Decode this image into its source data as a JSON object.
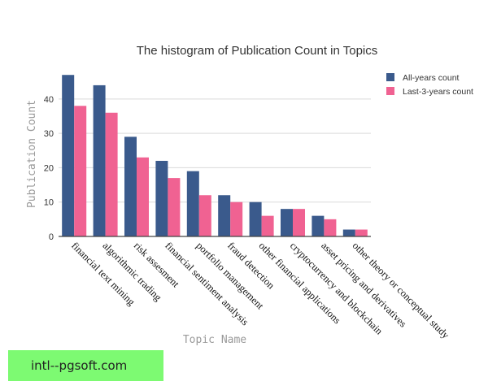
{
  "chart_data": {
    "type": "bar",
    "title": "The histogram of  Publication Count in Topics",
    "xlabel": "Topic Name",
    "ylabel": "Publication Count",
    "ylim": [
      0,
      48
    ],
    "yticks": [
      0,
      10,
      20,
      30,
      40
    ],
    "grid": true,
    "legend_position": "top-right",
    "categories": [
      "financial text mining",
      "algorithmic trading",
      "risk assesment",
      "financial sentiment analysis",
      "portfolio management",
      "fraud detection",
      "other financial applications",
      "cryptocurrency and blockchain",
      "asset pricing and derivatives",
      "other  theory or conceptual study"
    ],
    "series": [
      {
        "name": "All-years count",
        "color": "#3a5a8c",
        "values": [
          47,
          44,
          29,
          22,
          19,
          12,
          10,
          8,
          6,
          2
        ]
      },
      {
        "name": "Last-3-years count",
        "color": "#f06292",
        "values": [
          38,
          36,
          23,
          17,
          12,
          10,
          6,
          8,
          5,
          2
        ]
      }
    ]
  },
  "watermark": {
    "text": "intl--pgsoft.com",
    "color": "#7dfa72"
  }
}
